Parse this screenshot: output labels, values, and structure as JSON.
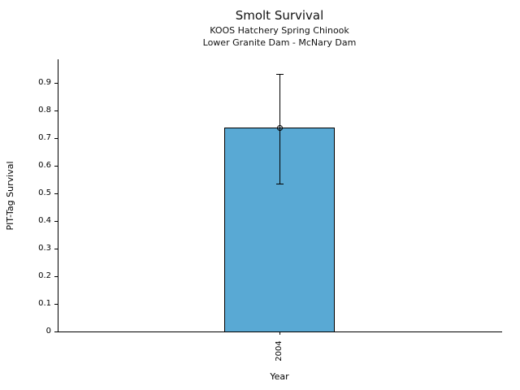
{
  "chart_data": {
    "type": "bar",
    "title": "Smolt Survival",
    "subtitle_lines": [
      "KOOS Hatchery Spring Chinook",
      "Lower Granite Dam - McNary Dam"
    ],
    "xlabel": "Year",
    "ylabel": "PIT-Tag Survival",
    "categories": [
      "2004"
    ],
    "values": [
      0.737
    ],
    "error_low": [
      0.535
    ],
    "error_high": [
      0.932
    ],
    "ylim": [
      0,
      0.985
    ],
    "yticks": [
      0,
      0.1,
      0.2,
      0.3,
      0.4,
      0.5,
      0.6,
      0.7,
      0.8,
      0.9
    ],
    "ytick_labels": [
      "0",
      "0.1",
      "0.2",
      "0.3",
      "0.4",
      "0.5",
      "0.6",
      "0.7",
      "0.8",
      "0.9"
    ],
    "grid": false,
    "legend": null,
    "marker": "open-circle",
    "colors": {
      "bar_fill": "#59A9D4",
      "bar_edge": "#000000",
      "error": "#000000",
      "text": "#000000",
      "background": "#ffffff"
    }
  }
}
